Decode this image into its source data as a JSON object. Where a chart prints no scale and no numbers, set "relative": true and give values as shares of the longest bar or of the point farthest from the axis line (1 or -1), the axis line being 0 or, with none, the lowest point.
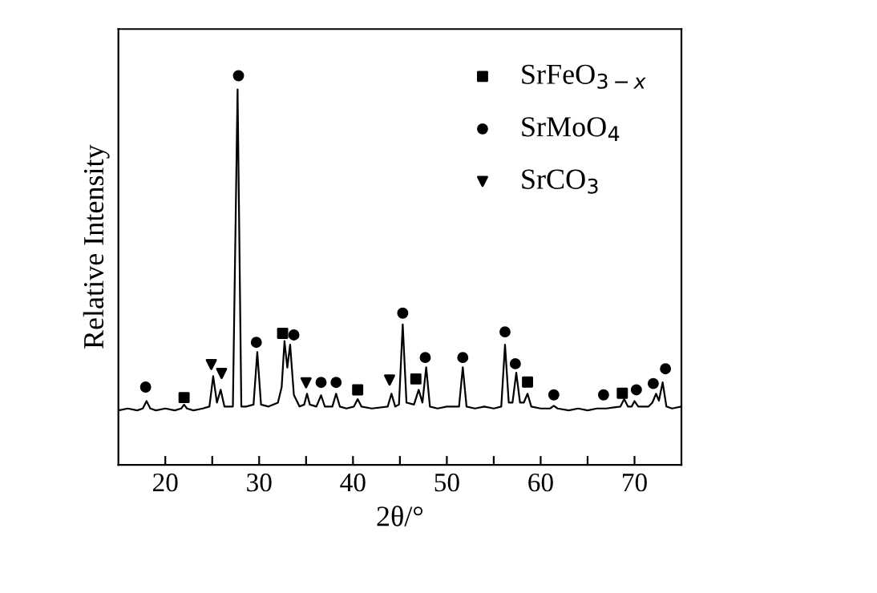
{
  "chart_data": {
    "type": "line",
    "relative": true,
    "xlabel": "2θ/°",
    "ylabel": "Relative Intensity",
    "xlim": [
      15,
      75
    ],
    "xticks": [
      20,
      {
        "value": 25,
        "label": null
      },
      30,
      {
        "value": 35,
        "label": null
      },
      40,
      {
        "value": 45,
        "label": null
      },
      50,
      {
        "value": 55,
        "label": null
      },
      60,
      {
        "value": 65,
        "label": null
      },
      70
    ],
    "legend": "top right",
    "grid": false,
    "series": [
      {
        "color": "#000000",
        "marker": "none",
        "line_style": "solid",
        "x": [
          15,
          16,
          17,
          17.6,
          18.0,
          18.4,
          19,
          20,
          21,
          21.7,
          22.0,
          22.3,
          23,
          24,
          24.7,
          25.1,
          25.5,
          25.9,
          26.3,
          27.2,
          27.7,
          28.1,
          28.6,
          29.4,
          29.8,
          30.2,
          31,
          32,
          32.4,
          32.7,
          33.0,
          33.3,
          33.7,
          34.3,
          34.8,
          35.1,
          35.4,
          36.1,
          36.6,
          37.0,
          37.8,
          38.2,
          38.6,
          39.3,
          40.1,
          40.5,
          40.9,
          42,
          43.7,
          44.1,
          44.5,
          44.9,
          45.3,
          45.7,
          46.5,
          47.0,
          47.4,
          47.8,
          48.2,
          49,
          50,
          51.3,
          51.7,
          52.1,
          53,
          54,
          55,
          55.8,
          56.2,
          56.6,
          57.0,
          57.4,
          57.8,
          58.2,
          58.6,
          59.0,
          60,
          61.0,
          61.4,
          61.8,
          63,
          64,
          65,
          66,
          67,
          68.5,
          68.9,
          69.3,
          69.7,
          70.0,
          70.4,
          71.5,
          71.9,
          72.3,
          72.6,
          73.0,
          73.4,
          74,
          75
        ],
        "values": [
          0.14,
          0.145,
          0.14,
          0.145,
          0.164,
          0.145,
          0.14,
          0.145,
          0.14,
          0.145,
          0.155,
          0.145,
          0.14,
          0.145,
          0.15,
          0.228,
          0.16,
          0.193,
          0.15,
          0.15,
          0.965,
          0.15,
          0.15,
          0.155,
          0.29,
          0.155,
          0.15,
          0.16,
          0.2,
          0.318,
          0.25,
          0.309,
          0.18,
          0.15,
          0.155,
          0.183,
          0.155,
          0.15,
          0.179,
          0.15,
          0.15,
          0.183,
          0.15,
          0.145,
          0.15,
          0.169,
          0.15,
          0.145,
          0.15,
          0.183,
          0.15,
          0.155,
          0.361,
          0.16,
          0.155,
          0.193,
          0.16,
          0.251,
          0.15,
          0.145,
          0.15,
          0.15,
          0.251,
          0.15,
          0.145,
          0.15,
          0.145,
          0.15,
          0.309,
          0.16,
          0.16,
          0.237,
          0.16,
          0.16,
          0.183,
          0.15,
          0.145,
          0.145,
          0.152,
          0.145,
          0.14,
          0.145,
          0.14,
          0.145,
          0.145,
          0.15,
          0.169,
          0.15,
          0.15,
          0.164,
          0.15,
          0.15,
          0.16,
          0.183,
          0.165,
          0.212,
          0.15,
          0.145,
          0.15
        ]
      },
      {
        "type": "scatter",
        "name": "SrFeO$_{3−x}$",
        "color": "#000000",
        "marker": "square",
        "x": [
          22.0,
          32.5,
          40.5,
          46.7,
          58.6,
          68.7
        ],
        "values": [
          0.173,
          0.338,
          0.193,
          0.221,
          0.213,
          0.184
        ]
      },
      {
        "type": "scatter",
        "name": "SrMoO$_{4}$",
        "color": "#000000",
        "marker": "circle",
        "x": [
          17.9,
          27.8,
          29.7,
          33.7,
          36.6,
          38.2,
          45.3,
          47.7,
          51.7,
          56.2,
          57.3,
          61.4,
          66.7,
          70.2,
          72.0,
          73.3
        ],
        "values": [
          0.2,
          1.0,
          0.315,
          0.334,
          0.212,
          0.212,
          0.39,
          0.276,
          0.276,
          0.342,
          0.26,
          0.18,
          0.18,
          0.193,
          0.209,
          0.247
        ]
      },
      {
        "type": "scatter",
        "name": "SrCO$_{3}$",
        "color": "#000000",
        "marker": "triangle",
        "x": [
          24.9,
          26.0,
          35.0,
          43.9
        ],
        "values": [
          0.258,
          0.235,
          0.211,
          0.218
        ]
      }
    ]
  }
}
